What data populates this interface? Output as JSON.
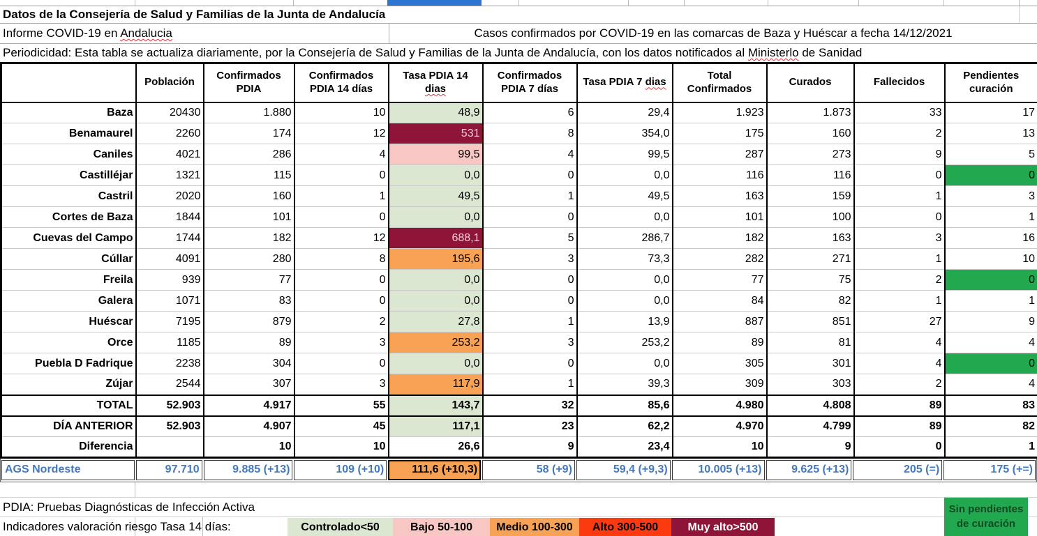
{
  "titles": {
    "main": "Datos de la Consejería de Salud y Familias de la Junta de Andalucía",
    "informe_pre": "Informe COVID-19 en ",
    "informe_typo": "Andalucia",
    "casos": "Casos confirmados por COVID-19 en las comarcas de Baza y Huéscar a fecha 14/12/2021",
    "period_pre": "Periodicidad: Esta tabla se actualiza diariamente, por la Consejería de Salud y Familias de la Junta de Andalucía, con los datos notificados al ",
    "period_typo": "Ministerlo",
    "period_post": " de Sanidad"
  },
  "table": {
    "columns": [
      {
        "key": "municipio",
        "label": ""
      },
      {
        "key": "poblacion",
        "label": "Población"
      },
      {
        "key": "confirmados_pdia",
        "label": "Confirmados PDIA"
      },
      {
        "key": "confirmados_pdia_14",
        "label": "Confirmados PDIA 14 días"
      },
      {
        "key": "tasa_pdia_14",
        "label": "Tasa PDIA 14 dias",
        "typo": "dias"
      },
      {
        "key": "confirmados_pdia_7",
        "label": "Confirmados PDIA 7 días"
      },
      {
        "key": "tasa_pdia_7",
        "label": "Tasa PDIA 7 dias",
        "typo": "dias"
      },
      {
        "key": "total_confirmados",
        "label": "Total Confirmados"
      },
      {
        "key": "curados",
        "label": "Curados"
      },
      {
        "key": "fallecidos",
        "label": "Fallecidos"
      },
      {
        "key": "pendientes_curacion",
        "label": "Pendientes curación"
      }
    ],
    "rows": [
      {
        "name": "Baza",
        "values": [
          "20430",
          "1.880",
          "10",
          "48,9",
          "6",
          "29,4",
          "1.923",
          "1.873",
          "33",
          "17"
        ],
        "tasa14": "ok",
        "pend_green": false
      },
      {
        "name": "Benamaurel",
        "values": [
          "2260",
          "174",
          "12",
          "531",
          "8",
          "354,0",
          "175",
          "160",
          "2",
          "13"
        ],
        "tasa14": "muyalto",
        "pend_green": false
      },
      {
        "name": "Caniles",
        "values": [
          "4021",
          "286",
          "4",
          "99,5",
          "4",
          "99,5",
          "287",
          "273",
          "9",
          "5"
        ],
        "tasa14": "bajo",
        "pend_green": false
      },
      {
        "name": "Castilléjar",
        "values": [
          "1321",
          "115",
          "0",
          "0,0",
          "0",
          "0,0",
          "116",
          "116",
          "0",
          "0"
        ],
        "tasa14": "ok",
        "pend_green": true
      },
      {
        "name": "Castril",
        "values": [
          "2020",
          "160",
          "1",
          "49,5",
          "1",
          "49,5",
          "163",
          "159",
          "1",
          "3"
        ],
        "tasa14": "ok",
        "pend_green": false
      },
      {
        "name": "Cortes de Baza",
        "values": [
          "1844",
          "101",
          "0",
          "0,0",
          "0",
          "0,0",
          "101",
          "100",
          "0",
          "1"
        ],
        "tasa14": "ok",
        "pend_green": false
      },
      {
        "name": "Cuevas del Campo",
        "values": [
          "1744",
          "182",
          "12",
          "688,1",
          "5",
          "286,7",
          "182",
          "163",
          "3",
          "16"
        ],
        "tasa14": "muyalto",
        "pend_green": false
      },
      {
        "name": "Cúllar",
        "values": [
          "4091",
          "280",
          "8",
          "195,6",
          "3",
          "73,3",
          "282",
          "271",
          "1",
          "10"
        ],
        "tasa14": "medio",
        "pend_green": false
      },
      {
        "name": "Freila",
        "values": [
          "939",
          "77",
          "0",
          "0,0",
          "0",
          "0,0",
          "77",
          "75",
          "2",
          "0"
        ],
        "tasa14": "ok",
        "pend_green": true
      },
      {
        "name": "Galera",
        "values": [
          "1071",
          "83",
          "0",
          "0,0",
          "0",
          "0,0",
          "84",
          "82",
          "1",
          "1"
        ],
        "tasa14": "ok",
        "pend_green": false
      },
      {
        "name": "Huéscar",
        "values": [
          "7195",
          "879",
          "2",
          "27,8",
          "1",
          "13,9",
          "887",
          "851",
          "27",
          "9"
        ],
        "tasa14": "ok",
        "pend_green": false
      },
      {
        "name": "Orce",
        "values": [
          "1185",
          "89",
          "3",
          "253,2",
          "3",
          "253,2",
          "89",
          "81",
          "4",
          "4"
        ],
        "tasa14": "medio",
        "pend_green": false
      },
      {
        "name": "Puebla D Fadrique",
        "values": [
          "2238",
          "304",
          "0",
          "0,0",
          "0",
          "0,0",
          "305",
          "301",
          "4",
          "0"
        ],
        "tasa14": "ok",
        "pend_green": true
      },
      {
        "name": "Zújar",
        "values": [
          "2544",
          "307",
          "3",
          "117,9",
          "1",
          "39,3",
          "309",
          "303",
          "2",
          "4"
        ],
        "tasa14": "medio",
        "pend_green": false
      }
    ],
    "summary_rows": [
      {
        "name": "TOTAL",
        "values": [
          "52.903",
          "4.917",
          "55",
          "143,7",
          "32",
          "85,6",
          "4.980",
          "4.808",
          "89",
          "83"
        ],
        "tasa14": "ok"
      },
      {
        "name": "DÍA ANTERIOR",
        "values": [
          "52.903",
          "4.907",
          "45",
          "117,1",
          "23",
          "62,2",
          "4.970",
          "4.799",
          "89",
          "82"
        ],
        "tasa14": "ok"
      },
      {
        "name": "Diferencia",
        "values": [
          "",
          "10",
          "10",
          "26,6",
          "9",
          "23,4",
          "10",
          "9",
          "0",
          "1"
        ],
        "tasa14": null
      }
    ]
  },
  "ags": {
    "label": "AGS Nordeste",
    "values": [
      "97.710",
      "9.885 (+13)",
      "109 (+10)",
      "111,6 (+10,3)",
      "58 (+9)",
      "59,4  (+9,3)",
      "10.005 (+13)",
      "9.625 (+13)",
      "205 (=)",
      "175 (+=)"
    ],
    "tasa14": "medio"
  },
  "footer": {
    "pdia_note": "PDIA: Pruebas Diagnósticas de Infección Activa",
    "indicator_label": "Indicadores valoración riesgo Tasa 14 días:",
    "legend": [
      {
        "label": "Controlado<50",
        "bg": "#dce7d2",
        "fg": "#000000"
      },
      {
        "label": "Bajo 50-100",
        "bg": "#f8c7c4",
        "fg": "#000000"
      },
      {
        "label": "Medio 100-300",
        "bg": "#f8a255",
        "fg": "#000000"
      },
      {
        "label": "Alto 300-500",
        "bg": "#fb3a10",
        "fg": "#000000"
      },
      {
        "label": "Muy alto>500",
        "bg": "#8e1538",
        "fg": "#ffffff"
      }
    ],
    "green_note": {
      "line1": "Sin pendientes",
      "line2": "de curación",
      "bg": "#22a84f"
    }
  },
  "colors": {
    "risk_controlado": "#dce7d2",
    "risk_bajo": "#f8c7c4",
    "risk_medio": "#f8a255",
    "risk_alto": "#fb3a10",
    "risk_muy_alto": "#8e1538",
    "no_pending_green": "#22a84f",
    "ags_text_blue": "#4378bd",
    "selection_blue": "#2e75d2"
  }
}
